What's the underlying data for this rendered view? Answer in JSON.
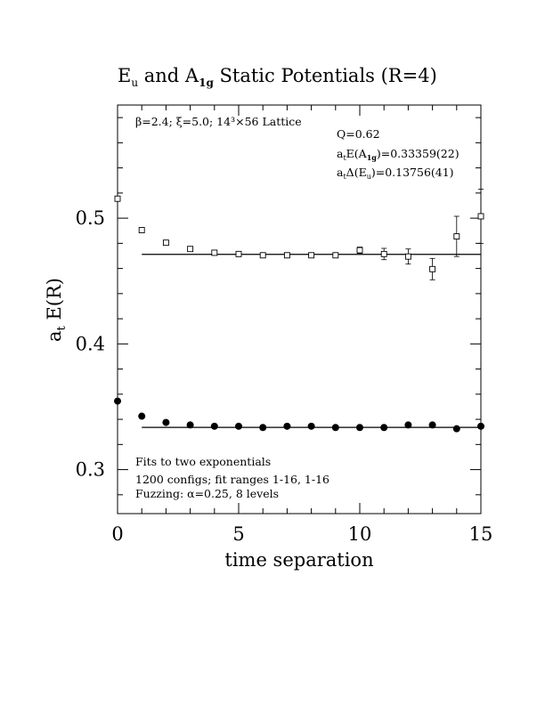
{
  "chart_data": {
    "type": "scatter",
    "title": {
      "prefix": "E",
      "prefix_sub": "u",
      "middle": " and A",
      "middle_sub": "1g",
      "suffix": " Static Potentials (R=4)"
    },
    "xlabel": "time separation",
    "ylabel": {
      "main": "a",
      "sub": "t",
      "rest": " E(R)"
    },
    "xlim": [
      0,
      15
    ],
    "ylim": [
      0.265,
      0.59
    ],
    "x_ticks": [
      0,
      5,
      10,
      15
    ],
    "y_ticks": [
      0.3,
      0.4,
      0.5
    ],
    "x_tick_labels": [
      "0",
      "5",
      "10",
      "15"
    ],
    "y_tick_labels": [
      "0.3",
      "0.4",
      "0.5"
    ],
    "grid": false,
    "annotations": {
      "params": "β=2.4; ξ=5.0; 14³×56 Lattice",
      "q": "Q=0.62",
      "energy_a1g": {
        "lead": "a",
        "lead_sub": "t",
        "main": "E(A",
        "sub": "1g",
        "tail": ")=0.33359(22)"
      },
      "delta_eu": {
        "lead": "a",
        "lead_sub": "t",
        "main": "Δ(E",
        "sub": "u",
        "tail": ")=0.13756(41)"
      },
      "fits_line1": "Fits to two exponentials",
      "fits_line2": "1200 configs; fit ranges 1-16, 1-16",
      "fits_line3": "Fuzzing: α=0.25, 8 levels"
    },
    "series": [
      {
        "marker": "open-square",
        "color": "#000000",
        "x": [
          0,
          1,
          2,
          3,
          4,
          5,
          6,
          7,
          8,
          9,
          10,
          11,
          12,
          13,
          14,
          15
        ],
        "y": [
          0.5155,
          0.4905,
          0.4805,
          0.4755,
          0.4725,
          0.4715,
          0.4705,
          0.4705,
          0.4705,
          0.4705,
          0.4745,
          0.4715,
          0.4695,
          0.4595,
          0.4855,
          0.5015
        ],
        "err": [
          0.001,
          0.001,
          0.001,
          0.001,
          0.001,
          0.001,
          0.0015,
          0.001,
          0.0015,
          0.0015,
          0.0025,
          0.0045,
          0.006,
          0.0085,
          0.016,
          0.0215
        ],
        "fit": {
          "value": 0.4712,
          "xmin": 1,
          "xmax": 15
        }
      },
      {
        "marker": "filled-circle",
        "color": "#000000",
        "x": [
          0,
          1,
          2,
          3,
          4,
          5,
          6,
          7,
          8,
          9,
          10,
          11,
          12,
          13,
          14,
          15
        ],
        "y": [
          0.3545,
          0.3425,
          0.3375,
          0.3355,
          0.3345,
          0.3345,
          0.3335,
          0.3345,
          0.3345,
          0.3335,
          0.3335,
          0.3335,
          0.3355,
          0.3355,
          0.3325,
          0.3345
        ],
        "err": [
          0,
          0,
          0,
          0,
          0,
          0,
          0,
          0,
          0,
          0,
          0,
          0,
          0,
          0,
          0,
          0
        ],
        "fit": {
          "value": 0.33359,
          "xmin": 1,
          "xmax": 15
        }
      }
    ]
  }
}
